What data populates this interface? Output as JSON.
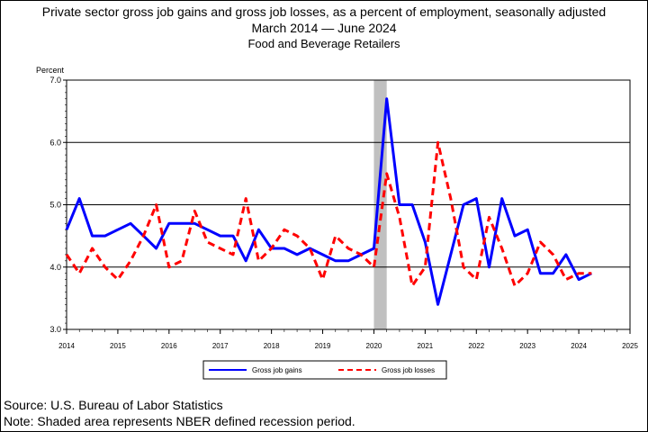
{
  "title": "Private sector gross job gains and gross job losses, as a percent of employment, seasonally adjusted",
  "subtitle_start": "March 2014",
  "subtitle_end": "June 2024",
  "industry": "Food and Beverage Retailers",
  "source": "Source: U.S. Bureau of Labor Statistics",
  "note": "Note: Shaded area represents NBER defined recession period.",
  "colors": {
    "gains": "#0000ff",
    "losses": "#ff0000",
    "recession": "#c0c0c0"
  },
  "chart_data": {
    "type": "line",
    "ylabel": "Percent",
    "ylim": [
      3.0,
      7.0
    ],
    "yticks": [
      "3.0",
      "4.0",
      "5.0",
      "6.0",
      "7.0"
    ],
    "xlim": [
      2014,
      2025
    ],
    "xticks": [
      "2014",
      "2015",
      "2016",
      "2017",
      "2018",
      "2019",
      "2020",
      "2021",
      "2022",
      "2023",
      "2024",
      "2025"
    ],
    "grid": "horizontal",
    "legend_position": "bottom",
    "recession": [
      2020.0,
      2020.25
    ],
    "x": [
      2014.0,
      2014.25,
      2014.5,
      2014.75,
      2015.0,
      2015.25,
      2015.5,
      2015.75,
      2016.0,
      2016.25,
      2016.5,
      2016.75,
      2017.0,
      2017.25,
      2017.5,
      2017.75,
      2018.0,
      2018.25,
      2018.5,
      2018.75,
      2019.0,
      2019.25,
      2019.5,
      2019.75,
      2020.0,
      2020.25,
      2020.5,
      2020.75,
      2021.0,
      2021.25,
      2021.5,
      2021.75,
      2022.0,
      2022.25,
      2022.5,
      2022.75,
      2023.0,
      2023.25,
      2023.5,
      2023.75,
      2024.0,
      2024.25
    ],
    "series": [
      {
        "name": "Gross job gains",
        "color": "#0000ff",
        "values": [
          4.6,
          5.1,
          4.5,
          4.5,
          4.6,
          4.7,
          4.5,
          4.3,
          4.7,
          4.7,
          4.7,
          4.6,
          4.5,
          4.5,
          4.1,
          4.6,
          4.3,
          4.3,
          4.2,
          4.3,
          4.2,
          4.1,
          4.1,
          4.2,
          4.3,
          6.7,
          5.0,
          5.0,
          4.4,
          3.4,
          4.2,
          5.0,
          5.1,
          4.0,
          5.1,
          4.5,
          4.6,
          3.9,
          3.9,
          4.2,
          3.8,
          3.9
        ]
      },
      {
        "name": "Gross job losses",
        "color": "#ff0000",
        "values": [
          4.2,
          3.9,
          4.3,
          4.0,
          3.8,
          4.1,
          4.5,
          5.0,
          4.0,
          4.1,
          4.9,
          4.4,
          4.3,
          4.2,
          5.1,
          4.1,
          4.3,
          4.6,
          4.5,
          4.3,
          3.8,
          4.5,
          4.3,
          4.2,
          4.0,
          5.5,
          4.8,
          3.7,
          4.0,
          6.0,
          5.1,
          4.0,
          3.8,
          4.8,
          4.3,
          3.7,
          3.9,
          4.4,
          4.2,
          3.8,
          3.9,
          3.9
        ]
      }
    ]
  }
}
